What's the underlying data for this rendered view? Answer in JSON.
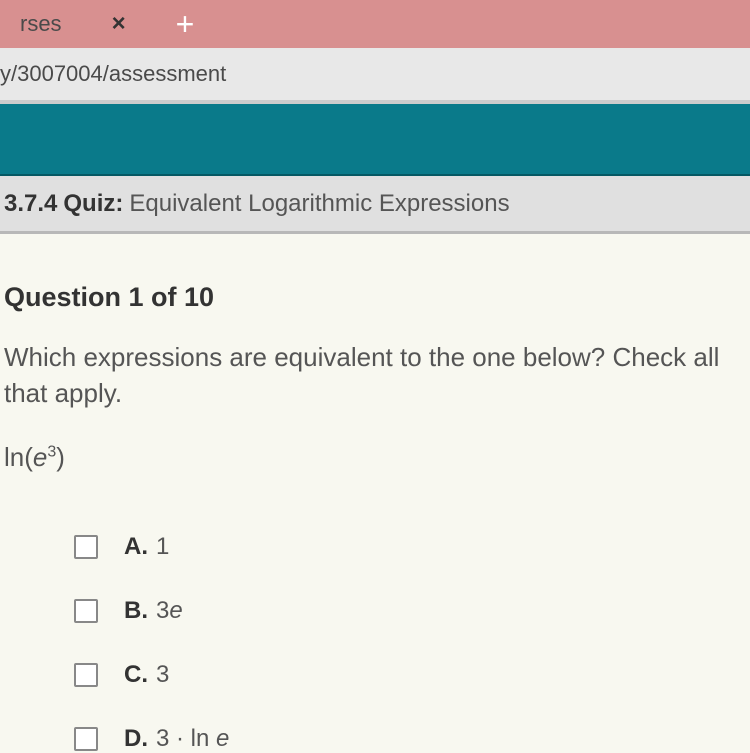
{
  "tab": {
    "label": "rses",
    "close_glyph": "×",
    "new_tab_glyph": "+"
  },
  "url": "y/3007004/assessment",
  "quiz": {
    "number": "3.7.4",
    "label": "Quiz:",
    "title": "Equivalent Logarithmic Expressions"
  },
  "question": {
    "counter": "Question 1 of 10",
    "prompt": "Which expressions are equivalent to the one below? Check all that apply.",
    "expression_prefix": "ln(",
    "expression_base": "e",
    "expression_exp": "3",
    "expression_suffix": ")"
  },
  "options": [
    {
      "letter": "A.",
      "text": "1"
    },
    {
      "letter": "B.",
      "text": "3e"
    },
    {
      "letter": "C.",
      "text": "3"
    },
    {
      "letter": "D.",
      "text": "3 · ln e"
    }
  ],
  "colors": {
    "tab_bg": "#d89090",
    "teal": "#0a7a8a",
    "content_bg": "#f8f8f0"
  }
}
